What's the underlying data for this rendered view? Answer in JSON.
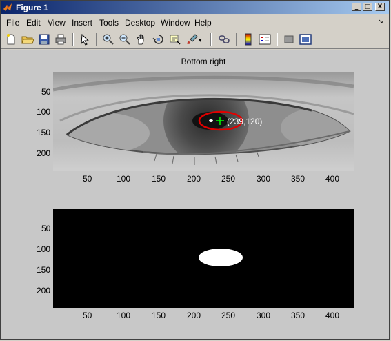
{
  "window": {
    "title": "Figure 1",
    "minimize": "_",
    "maximize": "□",
    "close": "X"
  },
  "menu": [
    "File",
    "Edit",
    "View",
    "Insert",
    "Tools",
    "Desktop",
    "Window",
    "Help"
  ],
  "toolbar_icons": [
    "new-figure-icon",
    "open-file-icon",
    "save-icon",
    "print-icon",
    "pointer-icon",
    "zoom-in-icon",
    "zoom-out-icon",
    "pan-icon",
    "rotate-3d-icon",
    "data-cursor-icon",
    "brush-icon",
    "link-plot-icon",
    "colorbar-icon",
    "legend-icon",
    "hide-plot-tools-icon",
    "show-plot-tools-icon"
  ],
  "axes_top": {
    "title": "Bottom right",
    "annotation": "(239,120)",
    "x_ticks": [
      "50",
      "100",
      "150",
      "200",
      "250",
      "300",
      "350",
      "400"
    ],
    "y_ticks": [
      "50",
      "100",
      "150",
      "200"
    ]
  },
  "axes_bottom": {
    "x_ticks": [
      "50",
      "100",
      "150",
      "200",
      "250",
      "300",
      "350",
      "400"
    ],
    "y_ticks": [
      "50",
      "100",
      "150",
      "200"
    ]
  },
  "colors": {
    "ellipse": "#e00000",
    "crosshair": "#00ff00",
    "titlebar": "#0a246a"
  }
}
